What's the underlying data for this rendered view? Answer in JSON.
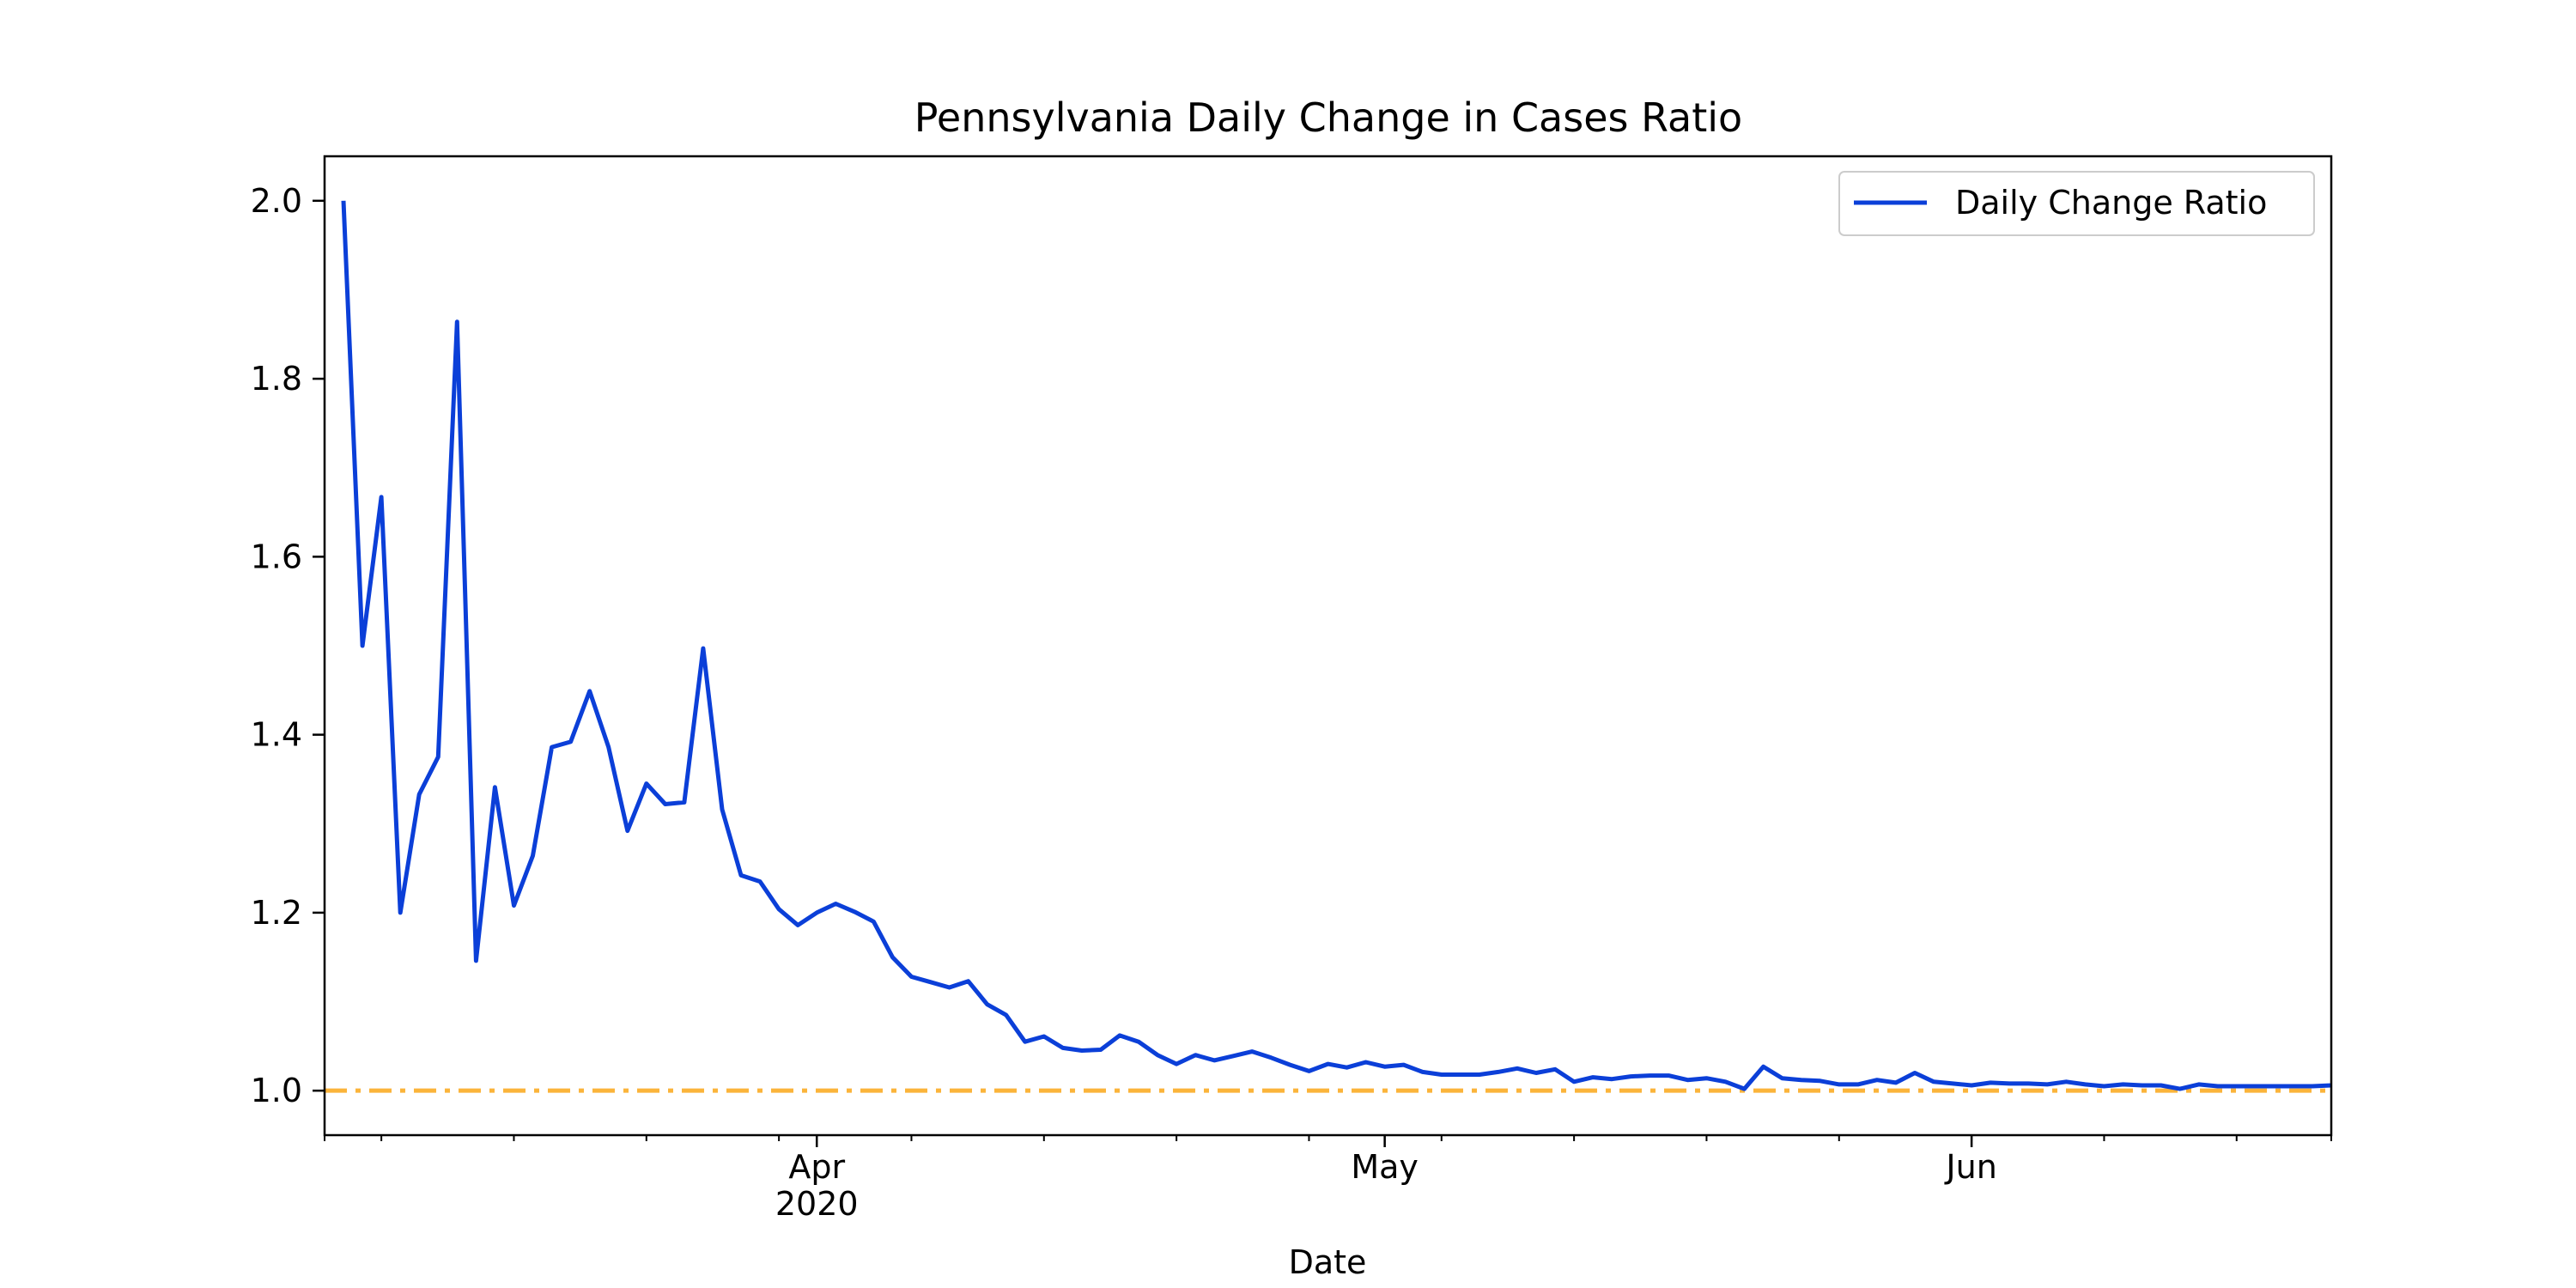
{
  "chart_data": {
    "type": "line",
    "title": "Pennsylvania Daily Change in Cases Ratio",
    "xlabel": "Date",
    "ylabel": "",
    "x_start": "2020-03-06",
    "x_end": "2020-06-20",
    "xlim": [
      "2020-03-06",
      "2020-06-20"
    ],
    "ylim": [
      0.95,
      2.05
    ],
    "yticks": [
      1.0,
      1.2,
      1.4,
      1.6,
      1.8,
      2.0
    ],
    "ytick_labels": [
      "1.0",
      "1.2",
      "1.4",
      "1.6",
      "1.8",
      "2.0"
    ],
    "xticks_major": [
      {
        "date": "2020-04-01",
        "label": "Apr",
        "sublabel": "2020"
      },
      {
        "date": "2020-05-01",
        "label": "May",
        "sublabel": ""
      },
      {
        "date": "2020-06-01",
        "label": "Jun",
        "sublabel": ""
      }
    ],
    "grid": false,
    "legend": {
      "position": "top-right",
      "entries": [
        "Daily Change Ratio"
      ]
    },
    "series": [
      {
        "name": "Daily Change Ratio",
        "color": "#0b3fd8",
        "x": [
          "2020-03-07",
          "2020-03-08",
          "2020-03-09",
          "2020-03-10",
          "2020-03-11",
          "2020-03-12",
          "2020-03-13",
          "2020-03-14",
          "2020-03-15",
          "2020-03-16",
          "2020-03-17",
          "2020-03-18",
          "2020-03-19",
          "2020-03-20",
          "2020-03-21",
          "2020-03-22",
          "2020-03-23",
          "2020-03-24",
          "2020-03-25",
          "2020-03-26",
          "2020-03-27",
          "2020-03-28",
          "2020-03-29",
          "2020-03-30",
          "2020-03-31",
          "2020-04-01",
          "2020-04-02",
          "2020-04-03",
          "2020-04-04",
          "2020-04-05",
          "2020-04-06",
          "2020-04-07",
          "2020-04-08",
          "2020-04-09",
          "2020-04-10",
          "2020-04-11",
          "2020-04-12",
          "2020-04-13",
          "2020-04-14",
          "2020-04-15",
          "2020-04-16",
          "2020-04-17",
          "2020-04-18",
          "2020-04-19",
          "2020-04-20",
          "2020-04-21",
          "2020-04-22",
          "2020-04-23",
          "2020-04-24",
          "2020-04-25",
          "2020-04-26",
          "2020-04-27",
          "2020-04-28",
          "2020-04-29",
          "2020-04-30",
          "2020-05-01",
          "2020-05-02",
          "2020-05-03",
          "2020-05-04",
          "2020-05-05",
          "2020-05-06",
          "2020-05-07",
          "2020-05-08",
          "2020-05-09",
          "2020-05-10",
          "2020-05-11",
          "2020-05-12",
          "2020-05-13",
          "2020-05-14",
          "2020-05-15",
          "2020-05-16",
          "2020-05-17",
          "2020-05-18",
          "2020-05-19",
          "2020-05-20",
          "2020-05-21",
          "2020-05-22",
          "2020-05-23",
          "2020-05-24",
          "2020-05-25",
          "2020-05-26",
          "2020-05-27",
          "2020-05-28",
          "2020-05-29",
          "2020-05-30",
          "2020-05-31",
          "2020-06-01",
          "2020-06-02",
          "2020-06-03",
          "2020-06-04",
          "2020-06-05",
          "2020-06-06",
          "2020-06-07",
          "2020-06-08",
          "2020-06-09",
          "2020-06-10",
          "2020-06-11",
          "2020-06-12",
          "2020-06-13",
          "2020-06-14",
          "2020-06-15",
          "2020-06-16",
          "2020-06-17",
          "2020-06-18",
          "2020-06-19",
          "2020-06-20"
        ],
        "values": [
          2.0,
          1.5,
          1.667,
          1.2,
          1.333,
          1.375,
          1.864,
          1.146,
          1.341,
          1.208,
          1.264,
          1.386,
          1.392,
          1.449,
          1.386,
          1.292,
          1.345,
          1.322,
          1.324,
          1.497,
          1.316,
          1.242,
          1.235,
          1.204,
          1.186,
          1.2,
          1.21,
          1.201,
          1.19,
          1.15,
          1.128,
          1.122,
          1.116,
          1.123,
          1.097,
          1.085,
          1.055,
          1.061,
          1.048,
          1.045,
          1.046,
          1.062,
          1.055,
          1.04,
          1.03,
          1.04,
          1.034,
          1.039,
          1.044,
          1.037,
          1.029,
          1.022,
          1.03,
          1.026,
          1.032,
          1.027,
          1.029,
          1.021,
          1.018,
          1.018,
          1.018,
          1.021,
          1.025,
          1.02,
          1.024,
          1.01,
          1.015,
          1.013,
          1.016,
          1.017,
          1.017,
          1.012,
          1.014,
          1.01,
          1.002,
          1.027,
          1.014,
          1.012,
          1.011,
          1.007,
          1.007,
          1.012,
          1.009,
          1.02,
          1.01,
          1.008,
          1.006,
          1.009,
          1.008,
          1.008,
          1.007,
          1.01,
          1.007,
          1.005,
          1.007,
          1.006,
          1.006,
          1.002,
          1.007,
          1.005,
          1.005,
          1.005,
          1.005,
          1.005,
          1.005,
          1.006
        ]
      }
    ],
    "reference_line": {
      "y": 1.0,
      "color": "#fbb43a",
      "style": "dash-dot"
    }
  }
}
